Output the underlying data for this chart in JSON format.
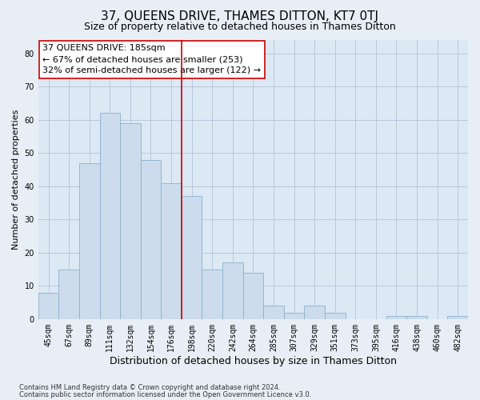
{
  "title": "37, QUEENS DRIVE, THAMES DITTON, KT7 0TJ",
  "subtitle": "Size of property relative to detached houses in Thames Ditton",
  "xlabel": "Distribution of detached houses by size in Thames Ditton",
  "ylabel": "Number of detached properties",
  "categories": [
    "45sqm",
    "67sqm",
    "89sqm",
    "111sqm",
    "132sqm",
    "154sqm",
    "176sqm",
    "198sqm",
    "220sqm",
    "242sqm",
    "264sqm",
    "285sqm",
    "307sqm",
    "329sqm",
    "351sqm",
    "373sqm",
    "395sqm",
    "416sqm",
    "438sqm",
    "460sqm",
    "482sqm"
  ],
  "bar_heights": [
    8,
    15,
    47,
    62,
    59,
    48,
    41,
    37,
    15,
    17,
    14,
    4,
    2,
    4,
    2,
    0,
    0,
    1,
    1,
    0,
    1
  ],
  "bar_color": "#ccdcec",
  "bar_edge_color": "#8ab0cc",
  "vline_position": 6.5,
  "vline_color": "#cc0000",
  "annotation_text": "37 QUEENS DRIVE: 185sqm\n← 67% of detached houses are smaller (253)\n32% of semi-detached houses are larger (122) →",
  "annotation_box_facecolor": "#ffffff",
  "annotation_box_edgecolor": "#cc0000",
  "ylim": [
    0,
    84
  ],
  "yticks": [
    0,
    10,
    20,
    30,
    40,
    50,
    60,
    70,
    80
  ],
  "grid_color": "#b8c8dc",
  "background_color": "#dce8f4",
  "fig_background_color": "#e8eef6",
  "footer_line1": "Contains HM Land Registry data © Crown copyright and database right 2024.",
  "footer_line2": "Contains public sector information licensed under the Open Government Licence v3.0.",
  "title_fontsize": 11,
  "subtitle_fontsize": 9,
  "xlabel_fontsize": 9,
  "ylabel_fontsize": 8,
  "tick_fontsize": 7,
  "annotation_fontsize": 8,
  "footer_fontsize": 6
}
